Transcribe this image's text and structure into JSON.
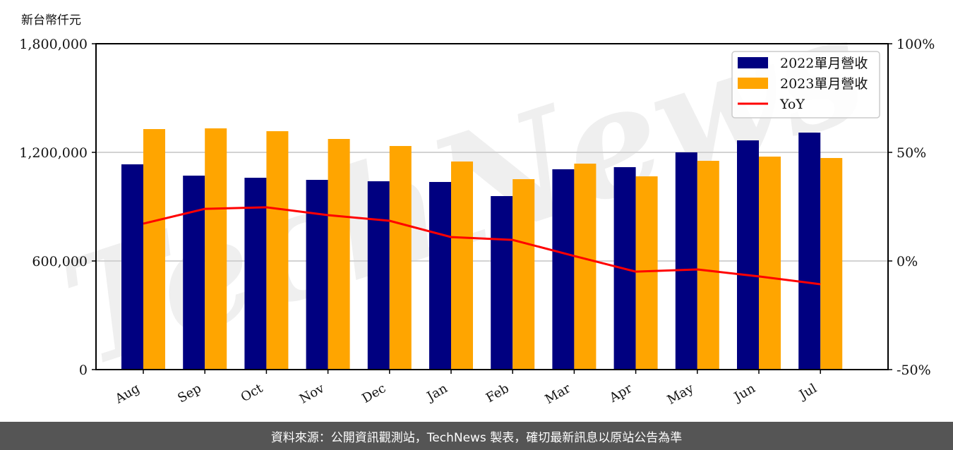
{
  "unit_label": "新台幣仟元",
  "footer": "資料來源：公開資訊觀測站，TechNews 製表，確切最新訊息以原站公告為準",
  "watermark": "TechNews",
  "colors": {
    "series_2022": "#000080",
    "series_2023": "#FFA500",
    "yoy": "#FF0000",
    "grid": "#D3D3D3",
    "footer_bg": "#555555"
  },
  "chart_data": {
    "type": "bar",
    "title": "",
    "xlabel": "",
    "ylabel": "新台幣仟元",
    "categories": [
      "Aug",
      "Sep",
      "Oct",
      "Nov",
      "Dec",
      "Jan",
      "Feb",
      "Mar",
      "Apr",
      "May",
      "Jun",
      "Jul"
    ],
    "series": [
      {
        "name": "2022單月營收",
        "type": "bar",
        "axis": "left",
        "values": [
          1133800,
          1071400,
          1059700,
          1048000,
          1040300,
          1036400,
          958400,
          1106500,
          1118200,
          1200000,
          1266200,
          1309100
        ]
      },
      {
        "name": "2023單月營收",
        "type": "bar",
        "axis": "left",
        "values": [
          1328600,
          1332500,
          1316900,
          1274000,
          1235100,
          1149400,
          1051900,
          1137700,
          1067500,
          1153200,
          1176600,
          1168800
        ]
      },
      {
        "name": "YoY",
        "type": "line",
        "axis": "right",
        "values": [
          17.2,
          24.0,
          24.7,
          21.1,
          18.5,
          11.0,
          9.7,
          2.3,
          -4.9,
          -3.9,
          -7.1,
          -10.7
        ]
      }
    ],
    "ylim": [
      0,
      1800000
    ],
    "yticks": [
      "0",
      "600,000",
      "1,200,000",
      "1,800,000"
    ],
    "y2lim": [
      -50,
      100
    ],
    "y2ticks": [
      "-50%",
      "0%",
      "50%",
      "100%"
    ],
    "grid": true,
    "legend_position": "upper right"
  }
}
